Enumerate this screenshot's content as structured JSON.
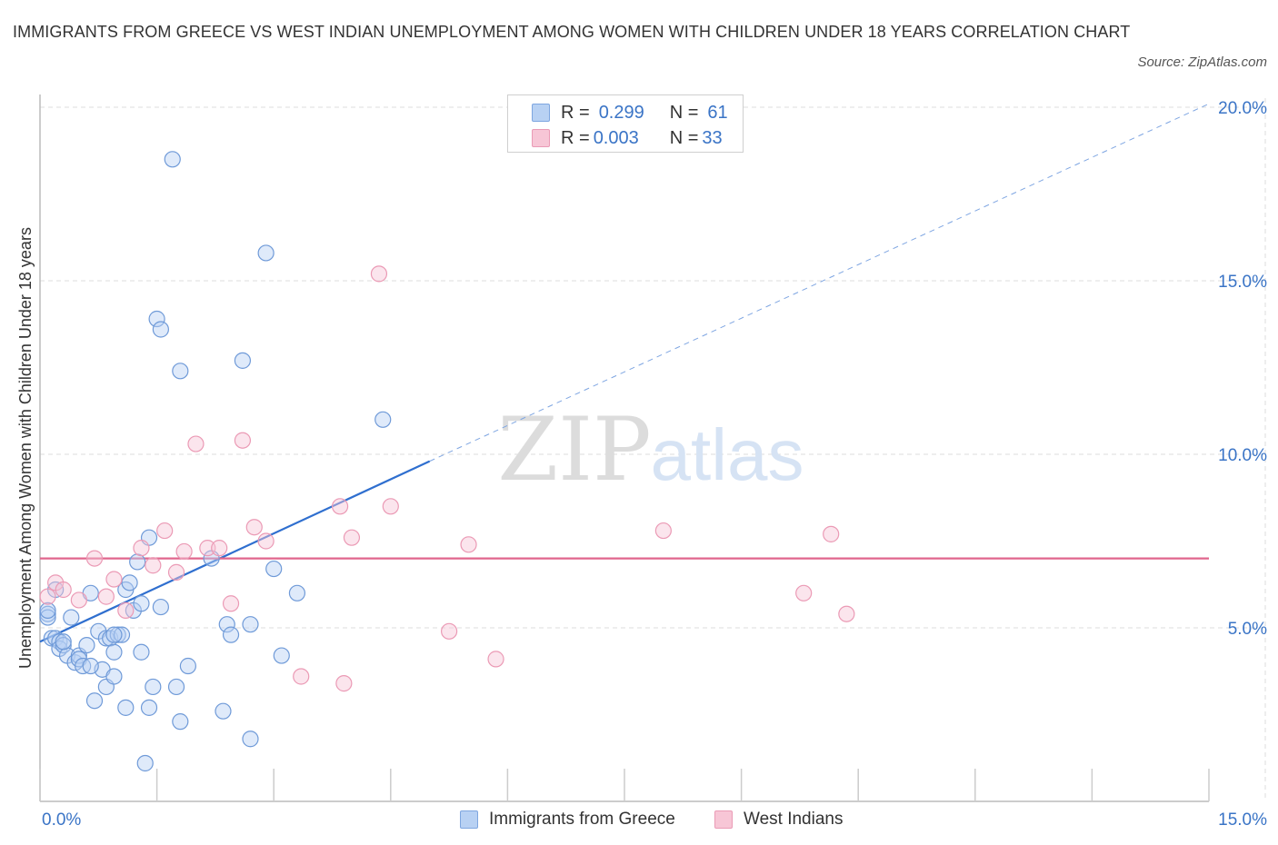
{
  "title": "IMMIGRANTS FROM GREECE VS WEST INDIAN UNEMPLOYMENT AMONG WOMEN WITH CHILDREN UNDER 18 YEARS CORRELATION CHART",
  "source": "Source: ZipAtlas.com",
  "watermark": {
    "zip": "ZIP",
    "atlas": "atlas"
  },
  "colors": {
    "blue": "#3a74c6",
    "blue_fill": "#b8d1f3",
    "pink": "#e0668d",
    "pink_fill": "#f7c6d6",
    "grid": "#dddddd"
  },
  "legend": {
    "r_label": "R =",
    "n_label": "N =",
    "rows": [
      {
        "r": "0.299",
        "n": "61"
      },
      {
        "r": "0.003",
        "n": "33"
      }
    ]
  },
  "chart_data": {
    "type": "scatter",
    "title": "IMMIGRANTS FROM GREECE VS WEST INDIAN UNEMPLOYMENT AMONG WOMEN WITH CHILDREN UNDER 18 YEARS CORRELATION CHART",
    "xlabel": "",
    "ylabel": "Unemployment Among Women with Children Under 18 years",
    "xlim": [
      0,
      15
    ],
    "ylim": [
      0,
      20
    ],
    "x_tick_labels": [
      "0.0%",
      "15.0%"
    ],
    "y_tick_labels": [
      "5.0%",
      "10.0%",
      "15.0%",
      "20.0%"
    ],
    "y_ticks": [
      5,
      10,
      15,
      20
    ],
    "grid": true,
    "legend_position": "bottom",
    "series": [
      {
        "name": "Immigrants from Greece",
        "color": "#3a74c6",
        "points": [
          [
            0.1,
            5.4
          ],
          [
            0.1,
            5.3
          ],
          [
            0.15,
            4.7
          ],
          [
            0.2,
            4.7
          ],
          [
            0.25,
            4.6
          ],
          [
            0.25,
            4.4
          ],
          [
            0.3,
            4.5
          ],
          [
            0.35,
            4.2
          ],
          [
            0.4,
            5.3
          ],
          [
            0.45,
            4.0
          ],
          [
            0.5,
            4.2
          ],
          [
            0.5,
            4.1
          ],
          [
            0.55,
            3.9
          ],
          [
            0.65,
            6.0
          ],
          [
            0.7,
            2.9
          ],
          [
            0.75,
            4.9
          ],
          [
            0.8,
            3.8
          ],
          [
            0.85,
            3.3
          ],
          [
            0.85,
            4.7
          ],
          [
            0.9,
            4.7
          ],
          [
            0.95,
            4.3
          ],
          [
            0.95,
            3.6
          ],
          [
            1.0,
            4.8
          ],
          [
            1.05,
            4.8
          ],
          [
            1.1,
            2.7
          ],
          [
            1.1,
            6.1
          ],
          [
            1.15,
            6.3
          ],
          [
            1.2,
            5.5
          ],
          [
            1.25,
            6.9
          ],
          [
            1.3,
            5.7
          ],
          [
            1.3,
            4.3
          ],
          [
            1.35,
            1.1
          ],
          [
            1.4,
            7.6
          ],
          [
            1.4,
            2.7
          ],
          [
            1.45,
            3.3
          ],
          [
            1.5,
            13.9
          ],
          [
            1.55,
            13.6
          ],
          [
            1.55,
            5.6
          ],
          [
            1.7,
            18.5
          ],
          [
            1.75,
            3.3
          ],
          [
            1.8,
            2.3
          ],
          [
            1.8,
            12.4
          ],
          [
            1.9,
            3.9
          ],
          [
            2.2,
            7.0
          ],
          [
            2.35,
            2.6
          ],
          [
            2.4,
            5.1
          ],
          [
            2.45,
            4.8
          ],
          [
            2.6,
            12.7
          ],
          [
            2.7,
            5.1
          ],
          [
            2.7,
            1.8
          ],
          [
            2.9,
            15.8
          ],
          [
            3.0,
            6.7
          ],
          [
            3.1,
            4.2
          ],
          [
            3.3,
            6.0
          ],
          [
            4.4,
            11.0
          ],
          [
            0.1,
            5.5
          ],
          [
            0.2,
            6.1
          ],
          [
            0.6,
            4.5
          ],
          [
            0.95,
            4.8
          ],
          [
            0.65,
            3.9
          ],
          [
            0.3,
            4.6
          ]
        ],
        "trend": {
          "x": [
            0,
            5
          ],
          "y": [
            4.6,
            9.8
          ],
          "extended_to": [
            15,
            20.1
          ]
        }
      },
      {
        "name": "West Indians",
        "color": "#e0668d",
        "points": [
          [
            0.1,
            5.9
          ],
          [
            0.2,
            6.3
          ],
          [
            0.3,
            6.1
          ],
          [
            0.5,
            5.8
          ],
          [
            0.7,
            7.0
          ],
          [
            0.85,
            5.9
          ],
          [
            0.95,
            6.4
          ],
          [
            1.1,
            5.5
          ],
          [
            1.3,
            7.3
          ],
          [
            1.45,
            6.8
          ],
          [
            1.6,
            7.8
          ],
          [
            1.75,
            6.6
          ],
          [
            1.85,
            7.2
          ],
          [
            2.0,
            10.3
          ],
          [
            2.15,
            7.3
          ],
          [
            2.3,
            7.3
          ],
          [
            2.45,
            5.7
          ],
          [
            2.6,
            10.4
          ],
          [
            2.75,
            7.9
          ],
          [
            2.9,
            7.5
          ],
          [
            3.35,
            3.6
          ],
          [
            3.85,
            8.5
          ],
          [
            3.9,
            3.4
          ],
          [
            4.0,
            7.6
          ],
          [
            4.35,
            15.2
          ],
          [
            4.5,
            8.5
          ],
          [
            5.25,
            4.9
          ],
          [
            5.5,
            7.4
          ],
          [
            5.85,
            4.1
          ],
          [
            8.0,
            7.8
          ],
          [
            9.8,
            6.0
          ],
          [
            10.15,
            7.7
          ],
          [
            10.35,
            5.4
          ]
        ],
        "trend": {
          "x": [
            0,
            15
          ],
          "y": [
            7.0,
            7.0
          ]
        }
      }
    ]
  }
}
